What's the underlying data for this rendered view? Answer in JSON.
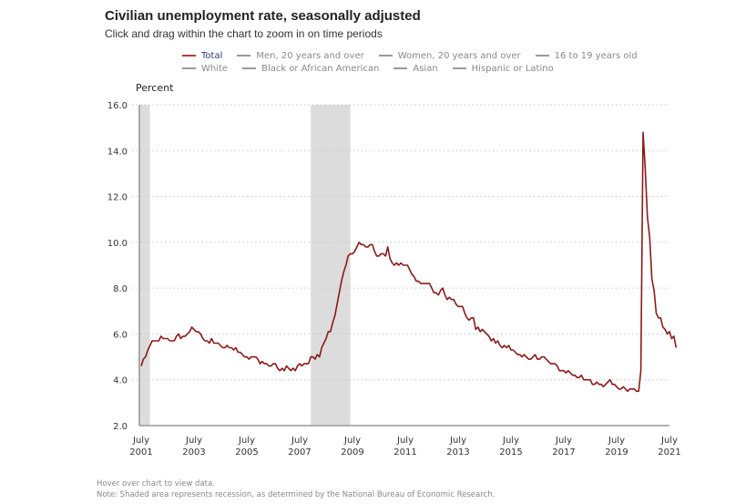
{
  "header": {
    "title": "Civilian unemployment rate, seasonally adjusted",
    "subtitle": "Click and drag within the chart to zoom in on time periods"
  },
  "legend": {
    "rows": [
      [
        {
          "label": "Total",
          "color": "#8b1a1a",
          "active": true
        },
        {
          "label": "Men, 20 years and over",
          "color": "#999999",
          "active": false
        },
        {
          "label": "Women, 20 years and over",
          "color": "#999999",
          "active": false
        },
        {
          "label": "16 to 19 years old",
          "color": "#999999",
          "active": false
        }
      ],
      [
        {
          "label": "White",
          "color": "#999999",
          "active": false
        },
        {
          "label": "Black or African American",
          "color": "#999999",
          "active": false
        },
        {
          "label": "Asian",
          "color": "#999999",
          "active": false
        },
        {
          "label": "Hispanic or Latino",
          "color": "#999999",
          "active": false
        }
      ]
    ]
  },
  "footer": {
    "hover_note": "Hover over chart to view data.",
    "shade_note": "Note: Shaded area represents recession, as determined by the National Bureau of Economic Research."
  },
  "chart_data": {
    "type": "line",
    "title": "Civilian unemployment rate, seasonally adjusted",
    "ylabel": "Percent",
    "xlabel": "",
    "ylim": [
      2.0,
      16.0
    ],
    "yticks": [
      "2.0",
      "4.0",
      "6.0",
      "8.0",
      "10.0",
      "12.0",
      "14.0",
      "16.0"
    ],
    "xticks": [
      {
        "line1": "July",
        "line2": "2001",
        "year": 2001.5
      },
      {
        "line1": "July",
        "line2": "2003",
        "year": 2003.5
      },
      {
        "line1": "July",
        "line2": "2005",
        "year": 2005.5
      },
      {
        "line1": "July",
        "line2": "2007",
        "year": 2007.5
      },
      {
        "line1": "July",
        "line2": "2009",
        "year": 2009.5
      },
      {
        "line1": "July",
        "line2": "2011",
        "year": 2011.5
      },
      {
        "line1": "July",
        "line2": "2013",
        "year": 2013.5
      },
      {
        "line1": "July",
        "line2": "2015",
        "year": 2015.5
      },
      {
        "line1": "July",
        "line2": "2017",
        "year": 2017.5
      },
      {
        "line1": "July",
        "line2": "2019",
        "year": 2019.5
      },
      {
        "line1": "July",
        "line2": "2021",
        "year": 2021.5
      }
    ],
    "xrange": [
      2001.5,
      2021.5
    ],
    "grid": "horizontal-dotted",
    "recessions": [
      {
        "start": 2001.17,
        "end": 2001.83
      },
      {
        "start": 2007.92,
        "end": 2009.42
      }
    ],
    "series": [
      {
        "name": "Total",
        "color": "#8b1a1a",
        "start": "2001-07",
        "frequency": "monthly",
        "values": [
          4.6,
          4.9,
          5.0,
          5.3,
          5.5,
          5.7,
          5.7,
          5.7,
          5.7,
          5.9,
          5.8,
          5.8,
          5.8,
          5.7,
          5.7,
          5.7,
          5.9,
          6.0,
          5.8,
          5.9,
          5.9,
          6.0,
          6.1,
          6.3,
          6.2,
          6.1,
          6.1,
          6.0,
          5.8,
          5.7,
          5.7,
          5.6,
          5.8,
          5.6,
          5.6,
          5.6,
          5.5,
          5.4,
          5.4,
          5.5,
          5.4,
          5.4,
          5.3,
          5.4,
          5.2,
          5.2,
          5.1,
          5.0,
          5.0,
          4.9,
          5.0,
          5.0,
          5.0,
          4.9,
          4.7,
          4.8,
          4.7,
          4.7,
          4.6,
          4.6,
          4.7,
          4.7,
          4.5,
          4.4,
          4.5,
          4.4,
          4.6,
          4.5,
          4.4,
          4.5,
          4.4,
          4.6,
          4.7,
          4.6,
          4.7,
          4.7,
          4.7,
          5.0,
          5.0,
          4.9,
          5.1,
          5.0,
          5.4,
          5.6,
          5.8,
          6.1,
          6.1,
          6.5,
          6.8,
          7.3,
          7.8,
          8.3,
          8.7,
          9.0,
          9.4,
          9.5,
          9.5,
          9.6,
          9.8,
          10.0,
          9.9,
          9.9,
          9.8,
          9.8,
          9.9,
          9.9,
          9.6,
          9.4,
          9.4,
          9.5,
          9.5,
          9.4,
          9.8,
          9.3,
          9.1,
          9.0,
          9.1,
          9.0,
          9.1,
          9.0,
          9.0,
          9.0,
          8.8,
          8.6,
          8.5,
          8.3,
          8.3,
          8.2,
          8.2,
          8.2,
          8.2,
          8.2,
          8.0,
          7.8,
          7.8,
          7.7,
          7.9,
          8.0,
          7.7,
          7.5,
          7.6,
          7.5,
          7.5,
          7.3,
          7.2,
          7.2,
          7.2,
          6.9,
          6.7,
          6.6,
          6.7,
          6.7,
          6.2,
          6.3,
          6.1,
          6.2,
          6.1,
          6.0,
          5.9,
          5.7,
          5.8,
          5.6,
          5.7,
          5.5,
          5.4,
          5.5,
          5.4,
          5.5,
          5.3,
          5.3,
          5.2,
          5.1,
          5.1,
          5.0,
          5.1,
          5.0,
          4.9,
          4.9,
          5.0,
          5.1,
          4.9,
          4.9,
          5.0,
          5.0,
          4.9,
          4.8,
          4.7,
          4.7,
          4.7,
          4.6,
          4.4,
          4.4,
          4.4,
          4.3,
          4.4,
          4.3,
          4.2,
          4.2,
          4.1,
          4.1,
          4.2,
          4.0,
          4.0,
          4.0,
          4.0,
          3.8,
          3.8,
          3.9,
          3.8,
          3.8,
          3.7,
          3.8,
          3.9,
          4.0,
          3.8,
          3.8,
          3.7,
          3.6,
          3.6,
          3.7,
          3.6,
          3.5,
          3.6,
          3.6,
          3.6,
          3.5,
          3.5,
          4.4,
          14.8,
          13.2,
          11.1,
          10.2,
          8.4,
          7.9,
          6.9,
          6.7,
          6.7,
          6.3,
          6.2,
          6.0,
          6.1,
          5.8,
          5.9,
          5.4
        ]
      }
    ]
  }
}
